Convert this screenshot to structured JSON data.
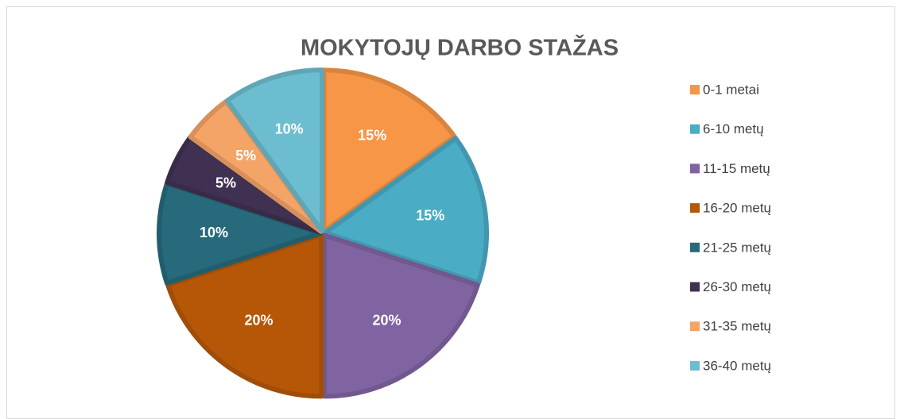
{
  "chart_data": {
    "type": "pie",
    "title": "MOKYTOJŲ  DARBO  STAŽAS",
    "categories": [
      "0-1 metai",
      "6-10 metų",
      "11-15 metų",
      "16-20 metų",
      "21-25 metų",
      "26-30 metų",
      "31-35 metų",
      "36-40 metų"
    ],
    "values": [
      15,
      15,
      20,
      20,
      10,
      5,
      5,
      10
    ],
    "value_labels": [
      "15%",
      "15%",
      "20%",
      "20%",
      "10%",
      "5%",
      "5%",
      "10%"
    ],
    "colors": [
      "#f79646",
      "#4bacc6",
      "#8064a2",
      "#b65708",
      "#276a7c",
      "#403152",
      "#f4a467",
      "#6cbdd0"
    ],
    "legend": "right"
  }
}
